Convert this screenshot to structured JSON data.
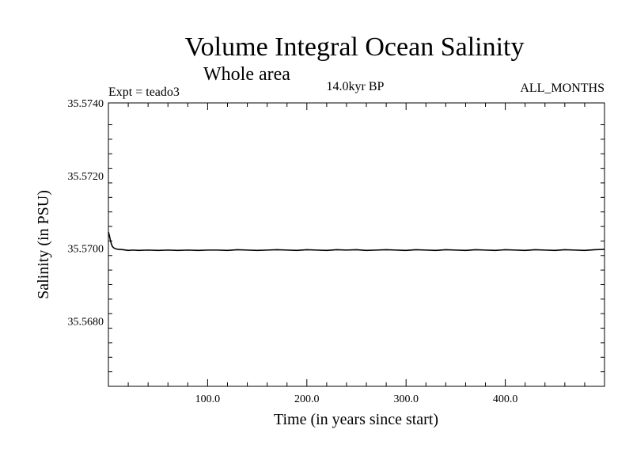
{
  "chart_data": {
    "type": "line",
    "title": "Volume Integral Ocean Salinity",
    "subtitle": "Whole area",
    "experiment": "Expt = teado3",
    "period": "14.0kyr BP",
    "months": "ALL_MONTHS",
    "xlabel": "Time (in years since start)",
    "ylabel": "Salinity (in PSU)",
    "xlim": [
      0,
      500
    ],
    "ylim": [
      35.5662,
      35.574
    ],
    "x_ticks": [
      {
        "value": 100,
        "label": "100.0"
      },
      {
        "value": 200,
        "label": "200.0"
      },
      {
        "value": 300,
        "label": "300.0"
      },
      {
        "value": 400,
        "label": "400.0"
      }
    ],
    "y_ticks": [
      {
        "value": 35.574,
        "label": "35.5740"
      },
      {
        "value": 35.572,
        "label": "35.5720"
      },
      {
        "value": 35.57,
        "label": "35.5700"
      },
      {
        "value": 35.568,
        "label": "35.5680"
      }
    ],
    "x_minor_step": 20,
    "y_minor_step": 0.0004,
    "series": [
      {
        "name": "Salinity",
        "x": [
          0,
          1,
          2,
          3,
          4,
          5,
          6,
          8,
          10,
          15,
          20,
          25,
          30,
          40,
          50,
          60,
          70,
          80,
          90,
          100,
          110,
          120,
          130,
          140,
          150,
          160,
          170,
          180,
          190,
          200,
          210,
          220,
          230,
          240,
          250,
          260,
          270,
          280,
          290,
          300,
          310,
          320,
          330,
          340,
          350,
          360,
          370,
          380,
          390,
          400,
          410,
          420,
          430,
          440,
          450,
          460,
          470,
          480,
          490,
          500
        ],
        "values": [
          35.57045,
          35.57035,
          35.57022,
          35.57012,
          35.57005,
          35.57002,
          35.57,
          35.56998,
          35.56997,
          35.56996,
          35.56994,
          35.56995,
          35.56994,
          35.56995,
          35.56994,
          35.56995,
          35.56994,
          35.56995,
          35.56994,
          35.56995,
          35.56995,
          35.56994,
          35.56996,
          35.56995,
          35.56994,
          35.56995,
          35.56996,
          35.56995,
          35.56994,
          35.56996,
          35.56995,
          35.56994,
          35.56996,
          35.56995,
          35.56996,
          35.56994,
          35.56995,
          35.56996,
          35.56995,
          35.56994,
          35.56996,
          35.56995,
          35.56994,
          35.56996,
          35.56995,
          35.56994,
          35.56996,
          35.56995,
          35.56994,
          35.56996,
          35.56995,
          35.56994,
          35.56996,
          35.56995,
          35.56994,
          35.56996,
          35.56995,
          35.56994,
          35.56996,
          35.56997
        ]
      }
    ]
  }
}
